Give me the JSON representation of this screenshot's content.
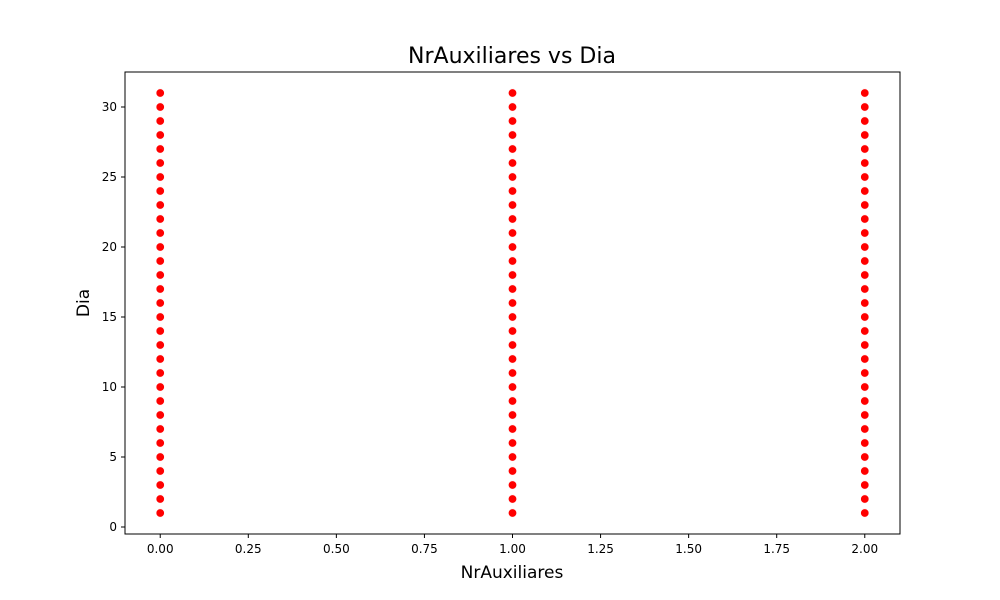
{
  "chart_data": {
    "type": "scatter",
    "title": "NrAuxiliares vs Dia",
    "xlabel": "NrAuxiliares",
    "ylabel": "Dia",
    "xlim": [
      -0.1,
      2.1
    ],
    "ylim": [
      -0.5,
      32.5
    ],
    "xticks": [
      0.0,
      0.25,
      0.5,
      0.75,
      1.0,
      1.25,
      1.5,
      1.75,
      2.0
    ],
    "xtick_labels": [
      "0.00",
      "0.25",
      "0.50",
      "0.75",
      "1.00",
      "1.25",
      "1.50",
      "1.75",
      "2.00"
    ],
    "yticks": [
      0,
      5,
      10,
      15,
      20,
      25,
      30
    ],
    "ytick_labels": [
      "0",
      "5",
      "10",
      "15",
      "20",
      "25",
      "30"
    ],
    "grid": false,
    "marker_color": "#ff0000",
    "series": [
      {
        "x": [
          0,
          0,
          0,
          0,
          0,
          0,
          0,
          0,
          0,
          0,
          0,
          0,
          0,
          0,
          0,
          0,
          0,
          0,
          0,
          0,
          0,
          0,
          0,
          0,
          0,
          0,
          0,
          0,
          0,
          0,
          0,
          1,
          1,
          1,
          1,
          1,
          1,
          1,
          1,
          1,
          1,
          1,
          1,
          1,
          1,
          1,
          1,
          1,
          1,
          1,
          1,
          1,
          1,
          1,
          1,
          1,
          1,
          1,
          1,
          1,
          1,
          1,
          2,
          2,
          2,
          2,
          2,
          2,
          2,
          2,
          2,
          2,
          2,
          2,
          2,
          2,
          2,
          2,
          2,
          2,
          2,
          2,
          2,
          2,
          2,
          2,
          2,
          2,
          2,
          2,
          2,
          2,
          2
        ],
        "y": [
          1,
          2,
          3,
          4,
          5,
          6,
          7,
          8,
          9,
          10,
          11,
          12,
          13,
          14,
          15,
          16,
          17,
          18,
          19,
          20,
          21,
          22,
          23,
          24,
          25,
          26,
          27,
          28,
          29,
          30,
          31,
          1,
          2,
          3,
          4,
          5,
          6,
          7,
          8,
          9,
          10,
          11,
          12,
          13,
          14,
          15,
          16,
          17,
          18,
          19,
          20,
          21,
          22,
          23,
          24,
          25,
          26,
          27,
          28,
          29,
          30,
          31,
          1,
          2,
          3,
          4,
          5,
          6,
          7,
          8,
          9,
          10,
          11,
          12,
          13,
          14,
          15,
          16,
          17,
          18,
          19,
          20,
          21,
          22,
          23,
          24,
          25,
          26,
          27,
          28,
          29,
          30,
          31
        ]
      }
    ]
  }
}
